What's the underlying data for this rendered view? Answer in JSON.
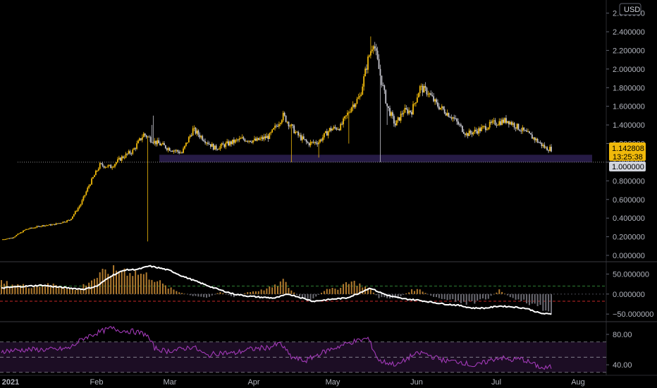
{
  "currency_button": "USD",
  "price_badge": {
    "price": "1.142808",
    "countdown": "13:25:38",
    "color": "#f0b90b"
  },
  "level_badge": {
    "value": "1.000000"
  },
  "colors": {
    "up": "#f0b90b",
    "down": "#c4c4cc",
    "zone": "#2a1e4d",
    "macd_line": "#ffffff",
    "hist_pos": "#b07a2e",
    "hist_neg": "#6b6b73",
    "rsi_line": "#a23ab8",
    "rsi_band": "#1c0d24"
  },
  "chart_data": [
    {
      "type": "candlestick",
      "panel": "price",
      "y_ticks": [
        "2.600000",
        "2.400000",
        "2.200000",
        "2.000000",
        "1.800000",
        "1.600000",
        "1.400000",
        "1.200000",
        "1.000000",
        "0.800000",
        "0.600000",
        "0.400000",
        "0.200000",
        "0.000000"
      ],
      "ylim": [
        0,
        2.65
      ],
      "x_ticks": [
        "2021",
        "Feb",
        "Mar",
        "Apr",
        "May",
        "Jun",
        "Jul",
        "Aug"
      ],
      "support_zone": [
        1.0,
        1.08
      ],
      "reference_line": 1.0,
      "last_price": 1.142808,
      "anchors": [
        [
          0,
          0.17
        ],
        [
          8,
          0.19
        ],
        [
          18,
          0.28
        ],
        [
          30,
          0.32
        ],
        [
          38,
          0.33
        ],
        [
          50,
          0.38
        ],
        [
          58,
          0.55
        ],
        [
          64,
          0.75
        ],
        [
          72,
          0.97
        ],
        [
          80,
          0.95
        ],
        [
          88,
          1.05
        ],
        [
          96,
          1.12
        ],
        [
          104,
          1.3
        ],
        [
          112,
          1.22
        ],
        [
          122,
          1.15
        ],
        [
          132,
          1.1
        ],
        [
          140,
          1.35
        ],
        [
          148,
          1.25
        ],
        [
          156,
          1.15
        ],
        [
          166,
          1.2
        ],
        [
          176,
          1.25
        ],
        [
          186,
          1.23
        ],
        [
          196,
          1.28
        ],
        [
          206,
          1.5
        ],
        [
          216,
          1.3
        ],
        [
          224,
          1.2
        ],
        [
          232,
          1.22
        ],
        [
          240,
          1.35
        ],
        [
          248,
          1.38
        ],
        [
          256,
          1.6
        ],
        [
          262,
          1.7
        ],
        [
          268,
          2.1
        ],
        [
          272,
          2.3
        ],
        [
          276,
          2.0
        ],
        [
          282,
          1.6
        ],
        [
          288,
          1.4
        ],
        [
          294,
          1.55
        ],
        [
          300,
          1.55
        ],
        [
          306,
          1.8
        ],
        [
          312,
          1.75
        ],
        [
          318,
          1.62
        ],
        [
          324,
          1.55
        ],
        [
          330,
          1.48
        ],
        [
          340,
          1.3
        ],
        [
          350,
          1.35
        ],
        [
          360,
          1.42
        ],
        [
          370,
          1.45
        ],
        [
          380,
          1.35
        ],
        [
          390,
          1.25
        ],
        [
          398,
          1.15
        ],
        [
          402,
          1.143
        ]
      ],
      "wicks": [
        [
          107,
          0.15
        ],
        [
          110,
          1.4
        ],
        [
          111,
          1.5
        ],
        [
          270,
          2.45
        ],
        [
          277,
          1.0
        ],
        [
          282,
          1.4
        ],
        [
          212,
          1.0
        ],
        [
          232,
          1.05
        ],
        [
          254,
          1.2
        ],
        [
          270,
          2.35
        ]
      ]
    },
    {
      "type": "macd",
      "panel": "oscillator",
      "y_ticks": [
        "50.000000",
        "0.000000",
        "−50.000000"
      ],
      "ylim": [
        -62,
        72
      ],
      "upper_line": 20,
      "lower_line": -18,
      "anchors": [
        [
          0,
          15
        ],
        [
          10,
          18
        ],
        [
          20,
          20
        ],
        [
          30,
          22
        ],
        [
          40,
          18
        ],
        [
          50,
          15
        ],
        [
          60,
          12
        ],
        [
          70,
          20
        ],
        [
          80,
          45
        ],
        [
          90,
          60
        ],
        [
          100,
          62
        ],
        [
          108,
          70
        ],
        [
          116,
          65
        ],
        [
          124,
          58
        ],
        [
          132,
          45
        ],
        [
          140,
          35
        ],
        [
          150,
          22
        ],
        [
          160,
          10
        ],
        [
          170,
          0
        ],
        [
          180,
          -5
        ],
        [
          190,
          -8
        ],
        [
          200,
          -10
        ],
        [
          210,
          0
        ],
        [
          220,
          -10
        ],
        [
          228,
          -18
        ],
        [
          236,
          -15
        ],
        [
          244,
          -12
        ],
        [
          252,
          -10
        ],
        [
          260,
          0
        ],
        [
          266,
          10
        ],
        [
          270,
          15
        ],
        [
          276,
          5
        ],
        [
          284,
          -5
        ],
        [
          294,
          -12
        ],
        [
          304,
          -15
        ],
        [
          314,
          -20
        ],
        [
          324,
          -25
        ],
        [
          334,
          -28
        ],
        [
          344,
          -35
        ],
        [
          354,
          -35
        ],
        [
          364,
          -30
        ],
        [
          374,
          -32
        ],
        [
          384,
          -36
        ],
        [
          394,
          -48
        ],
        [
          400,
          -50
        ]
      ],
      "hist_anchors": [
        [
          0,
          30
        ],
        [
          20,
          20
        ],
        [
          40,
          25
        ],
        [
          55,
          10
        ],
        [
          65,
          35
        ],
        [
          75,
          55
        ],
        [
          88,
          65
        ],
        [
          100,
          55
        ],
        [
          110,
          45
        ],
        [
          120,
          20
        ],
        [
          130,
          5
        ],
        [
          140,
          -5
        ],
        [
          150,
          -10
        ],
        [
          160,
          5
        ],
        [
          170,
          -8
        ],
        [
          180,
          5
        ],
        [
          190,
          10
        ],
        [
          200,
          20
        ],
        [
          206,
          35
        ],
        [
          212,
          10
        ],
        [
          218,
          -8
        ],
        [
          226,
          -20
        ],
        [
          236,
          10
        ],
        [
          246,
          15
        ],
        [
          254,
          35
        ],
        [
          262,
          25
        ],
        [
          270,
          12
        ],
        [
          276,
          -10
        ],
        [
          290,
          -10
        ],
        [
          300,
          10
        ],
        [
          306,
          12
        ],
        [
          314,
          -5
        ],
        [
          324,
          -15
        ],
        [
          334,
          -20
        ],
        [
          344,
          -25
        ],
        [
          356,
          -10
        ],
        [
          364,
          10
        ],
        [
          372,
          -8
        ],
        [
          384,
          -20
        ],
        [
          396,
          -40
        ],
        [
          402,
          -45
        ]
      ]
    },
    {
      "type": "line",
      "panel": "rsi",
      "y_ticks": [
        "80.00",
        "40.00"
      ],
      "ylim": [
        28,
        93
      ],
      "bands": [
        70,
        50,
        30
      ],
      "anchors": [
        [
          0,
          58
        ],
        [
          20,
          60
        ],
        [
          40,
          60
        ],
        [
          50,
          62
        ],
        [
          60,
          75
        ],
        [
          70,
          82
        ],
        [
          80,
          88
        ],
        [
          88,
          85
        ],
        [
          96,
          84
        ],
        [
          106,
          80
        ],
        [
          112,
          62
        ],
        [
          120,
          58
        ],
        [
          130,
          60
        ],
        [
          140,
          64
        ],
        [
          150,
          52
        ],
        [
          160,
          56
        ],
        [
          170,
          55
        ],
        [
          180,
          60
        ],
        [
          190,
          62
        ],
        [
          196,
          63
        ],
        [
          204,
          68
        ],
        [
          212,
          50
        ],
        [
          222,
          45
        ],
        [
          232,
          54
        ],
        [
          240,
          60
        ],
        [
          248,
          65
        ],
        [
          256,
          70
        ],
        [
          262,
          72
        ],
        [
          268,
          75
        ],
        [
          276,
          45
        ],
        [
          290,
          40
        ],
        [
          300,
          52
        ],
        [
          308,
          56
        ],
        [
          316,
          50
        ],
        [
          326,
          45
        ],
        [
          336,
          44
        ],
        [
          346,
          38
        ],
        [
          356,
          45
        ],
        [
          364,
          50
        ],
        [
          372,
          46
        ],
        [
          380,
          48
        ],
        [
          390,
          40
        ],
        [
          396,
          35
        ],
        [
          402,
          37
        ]
      ]
    }
  ]
}
